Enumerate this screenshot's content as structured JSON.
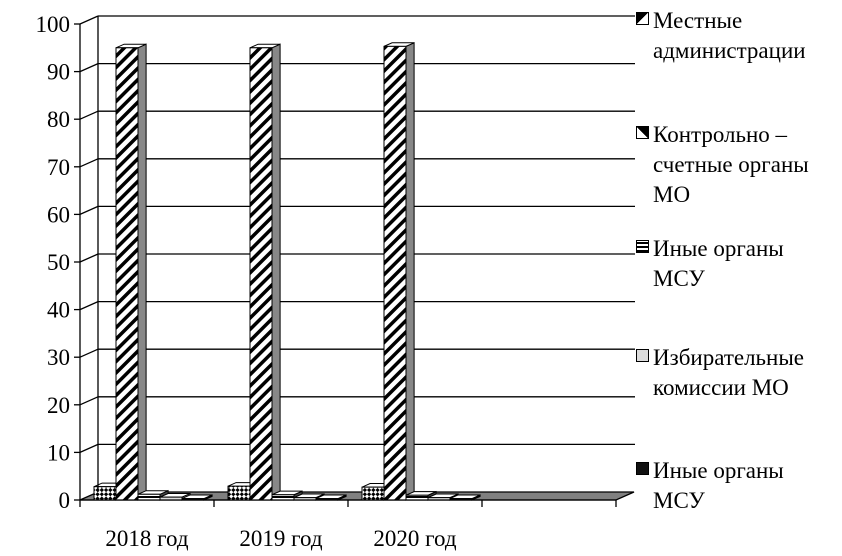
{
  "chart_data": {
    "type": "bar",
    "categories": [
      "2018 год",
      "2019 год",
      "2020 год"
    ],
    "ylim": [
      0,
      100
    ],
    "yticks": [
      0,
      10,
      20,
      30,
      40,
      50,
      60,
      70,
      80,
      90,
      100
    ],
    "grid": true,
    "legend_position": "right",
    "series": [
      {
        "name": "Местные администрации",
        "values": [
          2.8,
          2.9,
          2.7
        ],
        "color": "#ffffff",
        "pattern": "diagonal-checker"
      },
      {
        "name": "Контрольно – счетные органы МО",
        "values": [
          95,
          95,
          95.3
        ],
        "color": "#ffffff",
        "pattern": "diagonal-stripes"
      },
      {
        "name": "Иные органы МСУ",
        "values": [
          1.2,
          1.1,
          1.0
        ],
        "color": "#111111",
        "pattern": "horizontal-stripes"
      },
      {
        "name": "Избирательные комиссии МО",
        "values": [
          0.6,
          0.5,
          0.5
        ],
        "color": "#dcdcdc",
        "pattern": "solid"
      },
      {
        "name": "Иные органы МСУ",
        "values": [
          0.3,
          0.3,
          0.3
        ],
        "color": "#111111",
        "pattern": "solid"
      }
    ]
  }
}
